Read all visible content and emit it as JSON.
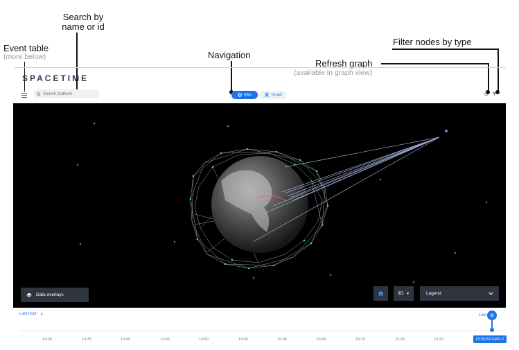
{
  "annotations": {
    "event_table": "Event table",
    "event_table_sub": "(more below)",
    "search": [
      "Search by",
      "name or id"
    ],
    "navigation": "Navigation",
    "refresh": "Refresh graph",
    "refresh_sub": "(available in graph view)",
    "filter": "Filter nodes by type"
  },
  "app": {
    "brand": "SPACETIME",
    "search_placeholder": "Search platform",
    "nav": {
      "map_label": "Map",
      "graph_label": "Graph"
    }
  },
  "map": {
    "data_overlays_label": "Data overlays",
    "view_mode": "3D",
    "legend_label": "Legend"
  },
  "timeline": {
    "range_label": "Last hour",
    "live_label": "Live",
    "ticks": [
      "14:30",
      "14:35",
      "14:40",
      "14:45",
      "14:50",
      "14:55",
      "15:00",
      "15:05",
      "15:10",
      "15:15",
      "15:20"
    ],
    "current_time": "15:26:53 GMT+7"
  },
  "colors": {
    "accent": "#1e73e8",
    "map_bg": "#000000"
  }
}
